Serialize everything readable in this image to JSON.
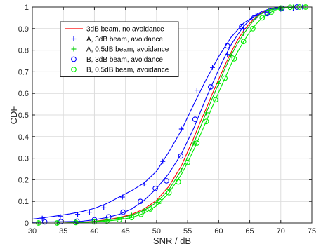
{
  "chart_data": {
    "type": "line",
    "title": "",
    "xlabel": "SNR / dB",
    "ylabel": "CDF",
    "xlim": [
      30,
      75
    ],
    "ylim": [
      0,
      1
    ],
    "xticks": [
      30,
      35,
      40,
      45,
      50,
      55,
      60,
      65,
      70,
      75
    ],
    "yticks": [
      0,
      0.1,
      0.2,
      0.3,
      0.4,
      0.5,
      0.6,
      0.7,
      0.8,
      0.9,
      1
    ],
    "xtick_labels": [
      "30",
      "35",
      "40",
      "45",
      "50",
      "55",
      "60",
      "65",
      "70",
      "75"
    ],
    "ytick_labels": [
      "0",
      "0.1",
      "0.2",
      "0.3",
      "0.4",
      "0.5",
      "0.6",
      "0.7",
      "0.8",
      "0.9",
      "1"
    ],
    "grid": true,
    "legend_position": "top-left",
    "series": [
      {
        "name": "3dB beam, no avoidance",
        "color": "#ff0000",
        "marker": "none",
        "x": [
          30,
          35,
          38,
          40,
          42,
          44,
          46,
          48,
          50,
          52,
          54,
          55,
          56,
          57,
          58,
          59,
          60,
          61,
          62,
          63,
          64,
          65,
          66,
          67,
          68,
          69,
          70,
          71,
          72,
          73,
          75
        ],
        "y": [
          0,
          0,
          0.003,
          0.008,
          0.015,
          0.025,
          0.04,
          0.065,
          0.105,
          0.17,
          0.265,
          0.33,
          0.395,
          0.465,
          0.53,
          0.6,
          0.665,
          0.73,
          0.79,
          0.845,
          0.89,
          0.925,
          0.955,
          0.975,
          0.99,
          0.995,
          0.998,
          1,
          1,
          1,
          1
        ]
      },
      {
        "name": "A, 3dB beam, avoidance",
        "color": "#0000ff",
        "marker": "plus",
        "x": [
          30,
          32,
          34,
          36,
          38,
          40,
          42,
          44,
          46,
          48,
          50,
          52,
          54,
          56,
          58,
          60,
          62,
          64,
          66,
          68,
          70,
          72,
          73,
          75
        ],
        "y": [
          0.018,
          0.025,
          0.033,
          0.042,
          0.053,
          0.068,
          0.09,
          0.12,
          0.15,
          0.185,
          0.24,
          0.33,
          0.43,
          0.55,
          0.665,
          0.77,
          0.86,
          0.925,
          0.962,
          0.985,
          0.995,
          0.999,
          1,
          1
        ],
        "marker_x": [
          31.6,
          34.5,
          37.3,
          39.2,
          41.5,
          44.5,
          48,
          51,
          54,
          56.5,
          59,
          61.4,
          64,
          66,
          68,
          70,
          72,
          73.5
        ],
        "marker_y": [
          0.022,
          0.03,
          0.04,
          0.05,
          0.07,
          0.12,
          0.18,
          0.285,
          0.435,
          0.615,
          0.72,
          0.78,
          0.9,
          0.96,
          0.975,
          0.99,
          0.995,
          1
        ]
      },
      {
        "name": "A, 0.5dB beam, avoidance",
        "color": "#00cc00",
        "marker": "plus",
        "x": [
          30,
          35,
          38,
          40,
          42,
          44,
          46,
          48,
          50,
          52,
          54,
          55,
          56,
          57,
          58,
          59,
          60,
          61,
          62,
          63,
          64,
          65,
          66,
          67,
          68,
          69,
          70,
          71,
          72,
          73,
          75
        ],
        "y": [
          0,
          0,
          0.003,
          0.007,
          0.013,
          0.022,
          0.036,
          0.058,
          0.095,
          0.155,
          0.245,
          0.305,
          0.37,
          0.44,
          0.51,
          0.58,
          0.645,
          0.715,
          0.775,
          0.83,
          0.875,
          0.915,
          0.95,
          0.97,
          0.985,
          0.993,
          0.997,
          1,
          1,
          1,
          1
        ],
        "marker_x": [
          31,
          34,
          37,
          40,
          42,
          44.4,
          46,
          48,
          50,
          52,
          54,
          56,
          58,
          60,
          62,
          64,
          66,
          68,
          70,
          72,
          74
        ],
        "marker_y": [
          0,
          0,
          0.002,
          0.007,
          0.013,
          0.022,
          0.036,
          0.058,
          0.095,
          0.155,
          0.245,
          0.37,
          0.51,
          0.645,
          0.775,
          0.875,
          0.95,
          0.985,
          0.997,
          1,
          1
        ]
      },
      {
        "name": "B, 3dB beam, avoidance",
        "color": "#0000ff",
        "marker": "circle",
        "x": [
          30,
          35,
          38,
          40,
          42,
          44,
          46,
          48,
          50,
          52,
          54,
          55,
          56,
          57,
          58,
          59,
          60,
          61,
          62,
          63,
          64,
          65,
          66,
          67,
          68,
          69,
          70,
          71,
          72,
          73,
          75
        ],
        "y": [
          0.004,
          0.006,
          0.008,
          0.015,
          0.025,
          0.04,
          0.065,
          0.105,
          0.16,
          0.23,
          0.32,
          0.38,
          0.44,
          0.51,
          0.58,
          0.645,
          0.71,
          0.77,
          0.825,
          0.87,
          0.91,
          0.94,
          0.965,
          0.98,
          0.99,
          0.996,
          0.999,
          1,
          1,
          1,
          1
        ],
        "marker_x": [
          32,
          34.6,
          37.2,
          40,
          42.3,
          44.6,
          47.4,
          49.8,
          51.6,
          53.9,
          56.2,
          58.7,
          61.4,
          63.7,
          65.7,
          67.8,
          70.2,
          72.6
        ],
        "marker_y": [
          0.005,
          0.006,
          0.008,
          0.015,
          0.028,
          0.05,
          0.1,
          0.16,
          0.195,
          0.31,
          0.48,
          0.63,
          0.82,
          0.91,
          0.95,
          0.97,
          0.995,
          1
        ]
      },
      {
        "name": "B, 0.5dB beam, avoidance",
        "color": "#00ee00",
        "marker": "circle",
        "x": [
          30,
          35,
          38,
          40,
          42,
          44,
          46,
          48,
          50,
          52,
          54,
          55,
          56,
          57,
          58,
          59,
          60,
          61,
          62,
          63,
          64,
          65,
          66,
          67,
          68,
          69,
          70,
          71,
          72,
          73,
          75
        ],
        "y": [
          0,
          0,
          0.002,
          0.005,
          0.009,
          0.015,
          0.025,
          0.045,
          0.08,
          0.14,
          0.225,
          0.28,
          0.34,
          0.405,
          0.47,
          0.54,
          0.605,
          0.67,
          0.735,
          0.79,
          0.84,
          0.885,
          0.92,
          0.95,
          0.97,
          0.985,
          0.994,
          0.998,
          1,
          1,
          1
        ],
        "marker_x": [
          31,
          34,
          37,
          40,
          42,
          44,
          46,
          47.5,
          49,
          50.5,
          52,
          53.5,
          55,
          56.5,
          58,
          59.5,
          61,
          62.5,
          64,
          65.5,
          67,
          68.5,
          70,
          71.5,
          73,
          74
        ],
        "marker_y": [
          0,
          0,
          0.002,
          0.005,
          0.009,
          0.015,
          0.025,
          0.04,
          0.065,
          0.1,
          0.14,
          0.19,
          0.28,
          0.37,
          0.47,
          0.57,
          0.67,
          0.76,
          0.84,
          0.9,
          0.95,
          0.977,
          0.994,
          0.999,
          1,
          1
        ]
      }
    ]
  }
}
